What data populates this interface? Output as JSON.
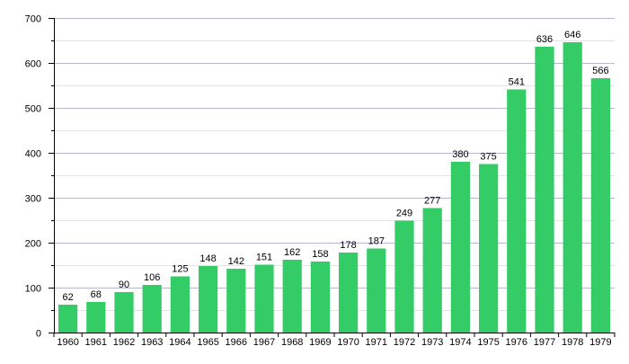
{
  "chart_data": {
    "type": "bar",
    "title": "",
    "xlabel": "",
    "ylabel": "",
    "categories": [
      "1960",
      "1961",
      "1962",
      "1963",
      "1964",
      "1965",
      "1966",
      "1967",
      "1968",
      "1969",
      "1970",
      "1971",
      "1972",
      "1973",
      "1974",
      "1975",
      "1976",
      "1977",
      "1978",
      "1979"
    ],
    "values": [
      62,
      68,
      90,
      106,
      125,
      148,
      142,
      151,
      162,
      158,
      178,
      187,
      249,
      277,
      380,
      375,
      541,
      636,
      646,
      566
    ],
    "ylim": [
      0,
      700
    ],
    "yticks": [
      0,
      100,
      200,
      300,
      400,
      500,
      600,
      700
    ],
    "grid": true,
    "legend": "none",
    "bar_color": "#33cc66",
    "grid_major_color": "#b8b8d0",
    "grid_minor_color": "#e2e2ee",
    "axis_color": "#000000"
  }
}
